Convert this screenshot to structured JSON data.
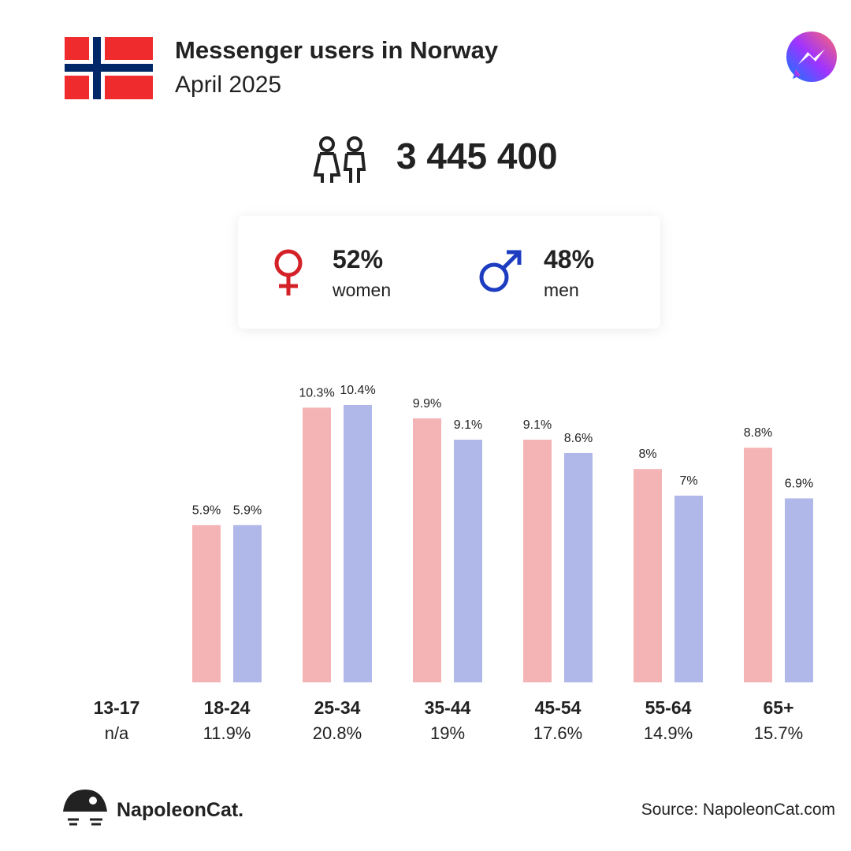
{
  "header": {
    "title": "Messenger users in Norway",
    "subtitle": "April 2025"
  },
  "total_users": "3 445 400",
  "gender_share": [
    "52%",
    "48%"
  ],
  "chart_data": {
    "type": "bar",
    "categories": [
      "13-17",
      "18-24",
      "25-34",
      "35-44",
      "45-54",
      "55-64",
      "65+"
    ],
    "category_totals": [
      "n/a",
      "11.9%",
      "20.8%",
      "19%",
      "17.6%",
      "14.9%",
      "15.7%"
    ],
    "series": [
      {
        "name": "women",
        "color": "#f4b4b5",
        "values": [
          null,
          5.9,
          10.3,
          9.9,
          9.1,
          8,
          8.8
        ],
        "value_labels": [
          null,
          "5.9%",
          "10.3%",
          "9.9%",
          "9.1%",
          "8%",
          "8.8%"
        ]
      },
      {
        "name": "men",
        "color": "#b0b8ea",
        "values": [
          null,
          5.9,
          10.4,
          9.1,
          8.6,
          7,
          6.9
        ],
        "value_labels": [
          null,
          "5.9%",
          "10.4%",
          "9.1%",
          "8.6%",
          "7%",
          "6.9%"
        ]
      }
    ]
  },
  "footer": {
    "brand": "NapoleonCat.",
    "source": "Source: NapoleonCat.com"
  }
}
